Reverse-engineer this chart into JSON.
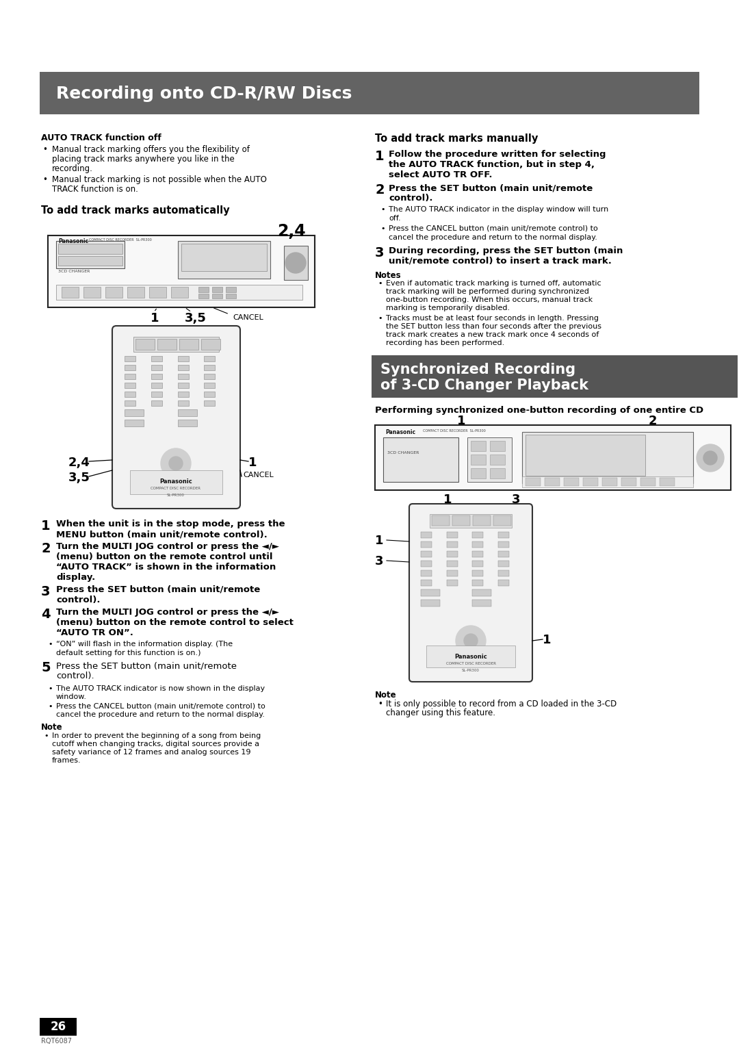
{
  "page_bg": "#ffffff",
  "header_bg": "#636363",
  "header_text": "Recording onto CD-R/RW Discs",
  "header_text_color": "#ffffff",
  "section2_bg": "#555555",
  "section2_text_line1": "Synchronized Recording",
  "section2_text_line2": "of 3-CD Changer Playback",
  "section2_text_color": "#ffffff",
  "page_number": "26",
  "page_number_bg": "#000000",
  "page_number_text": "#ffffff",
  "footer_code": "RQT6087",
  "content": {
    "auto_track_off_title": "AUTO TRACK function off",
    "auto_track_off_bullets": [
      "Manual track marking offers you the flexibility of placing track marks anywhere you like in the recording.",
      "Manual track marking is not possible when the AUTO TRACK function is on."
    ],
    "add_marks_auto_title": "To add track marks automatically",
    "steps_auto": [
      "When the unit is in the stop mode, press the MENU button (main unit/remote control).",
      "Turn the MULTI JOG control or press the ◄/► (menu) button on the remote control until “AUTO TRACK” is shown in the information display.",
      "Press the SET button (main unit/remote control).",
      "Turn the MULTI JOG control or press the ◄/► (menu) button on the remote control to select “AUTO TR ON”.",
      "Press the SET button (main unit/remote control)."
    ],
    "step5_bullet1": "“ON” will flash in the information display. (The default setting for this function is on.)",
    "notes_auto_label": "Note",
    "notes_auto": [
      "The AUTO TRACK indicator is now shown in the display window.",
      "Press the CANCEL button (main unit/remote control) to cancel the procedure and return to the normal display."
    ],
    "note_auto_label": "Note",
    "note_auto_text": "In order to prevent the beginning of a song from being cutoff when changing tracks, digital sources provide a safety variance of 12 frames and analog sources 19 frames.",
    "add_marks_manual_title": "To add track marks manually",
    "steps_manual": [
      "Follow the procedure written for selecting the AUTO TRACK function, but in step 4, select AUTO TR OFF.",
      "Press the SET button (main unit/remote control).",
      "During recording, press the SET button (main unit/remote control) to insert a track mark."
    ],
    "manual_bullets": [
      "The AUTO TRACK indicator in the display window will turn off.",
      "Press the CANCEL button (main unit/remote control) to cancel the procedure and return to the normal display."
    ],
    "notes_manual_label": "Notes",
    "notes_manual": [
      "Even if automatic track marking is turned off, automatic track marking will be performed during synchronized one-button recording. When this occurs, manual track marking is temporarily disabled.",
      "Tracks must be at least four seconds in length. Pressing the SET button less than four seconds after the previous track mark creates a new track mark once 4 seconds of recording has been performed."
    ],
    "sync_section_title": "Performing synchronized one-button recording of one entire CD",
    "sync_note_label": "Note",
    "sync_note": "It is only possible to record from a CD loaded in the 3-CD changer using this feature."
  }
}
